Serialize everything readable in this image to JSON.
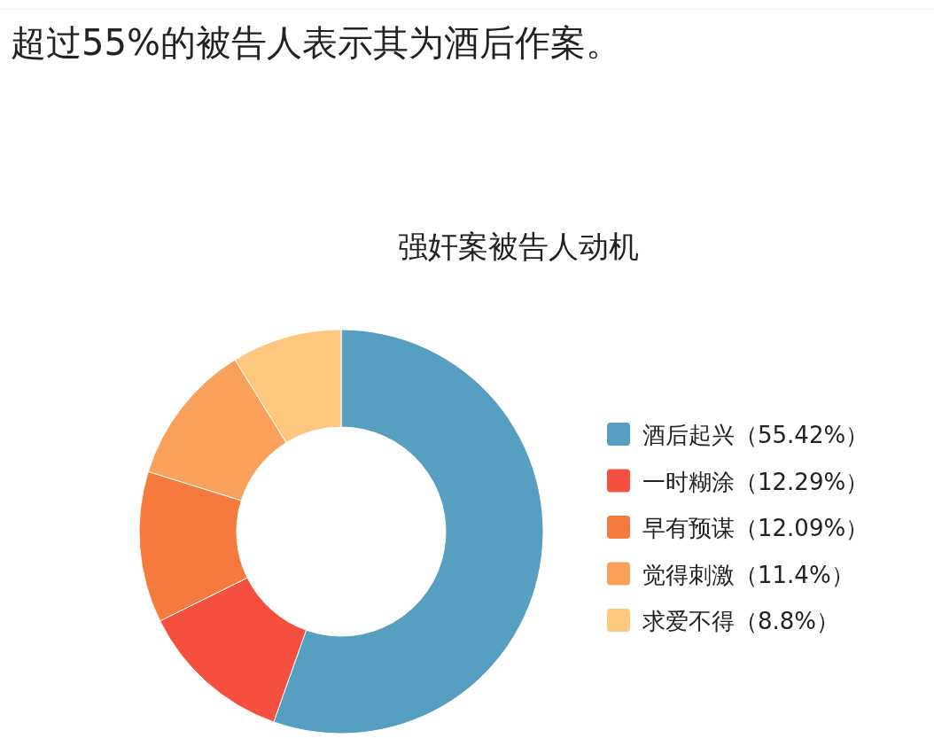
{
  "chart_data": {
    "type": "donut",
    "title": "超过55%的被告人表示其为酒后作案。",
    "subtitle": "强奸案被告人动机",
    "categories": [
      "酒后起兴",
      "一时糊涂",
      "早有预谋",
      "觉得刺激",
      "求爱不得"
    ],
    "values": [
      55.42,
      12.29,
      12.09,
      11.4,
      8.8
    ],
    "value_labels": [
      "（55.42%）",
      "（12.29%）",
      "（12.09%）",
      "（11.4%）",
      "（8.8%）"
    ],
    "colors": [
      "#569fc1",
      "#f5503f",
      "#f57a3e",
      "#f9a05a",
      "#fdc77e"
    ],
    "legend": "right"
  }
}
